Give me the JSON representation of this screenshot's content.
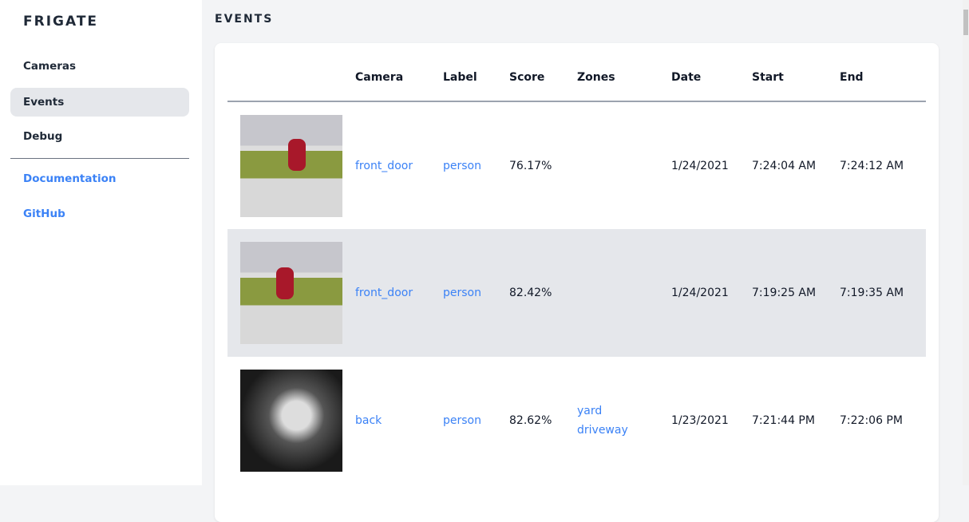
{
  "sidebar": {
    "brand": "FRIGATE",
    "items": [
      {
        "label": "Cameras"
      },
      {
        "label": "Events"
      },
      {
        "label": "Debug"
      }
    ],
    "links": [
      {
        "label": "Documentation"
      },
      {
        "label": "GitHub"
      }
    ]
  },
  "page": {
    "title": "EVENTS"
  },
  "table": {
    "headers": [
      "",
      "Camera",
      "Label",
      "Score",
      "Zones",
      "Date",
      "Start",
      "End"
    ],
    "rows": [
      {
        "camera": "front_door",
        "label": "person",
        "score": "76.17%",
        "zones": [
          "",
          ""
        ],
        "date": "1/24/2021",
        "start": "7:24:04 AM",
        "end": "7:24:12 AM"
      },
      {
        "camera": "front_door",
        "label": "person",
        "score": "82.42%",
        "zones": [
          "",
          ""
        ],
        "date": "1/24/2021",
        "start": "7:19:25 AM",
        "end": "7:19:35 AM"
      },
      {
        "camera": "back",
        "label": "person",
        "score": "82.62%",
        "zones": [
          "yard",
          "driveway"
        ],
        "date": "1/23/2021",
        "start": "7:21:44 PM",
        "end": "7:22:06 PM"
      }
    ]
  },
  "colors": {
    "accent": "#3b82f6",
    "active_bg": "#e5e7eb",
    "page_bg": "#f3f4f6"
  }
}
